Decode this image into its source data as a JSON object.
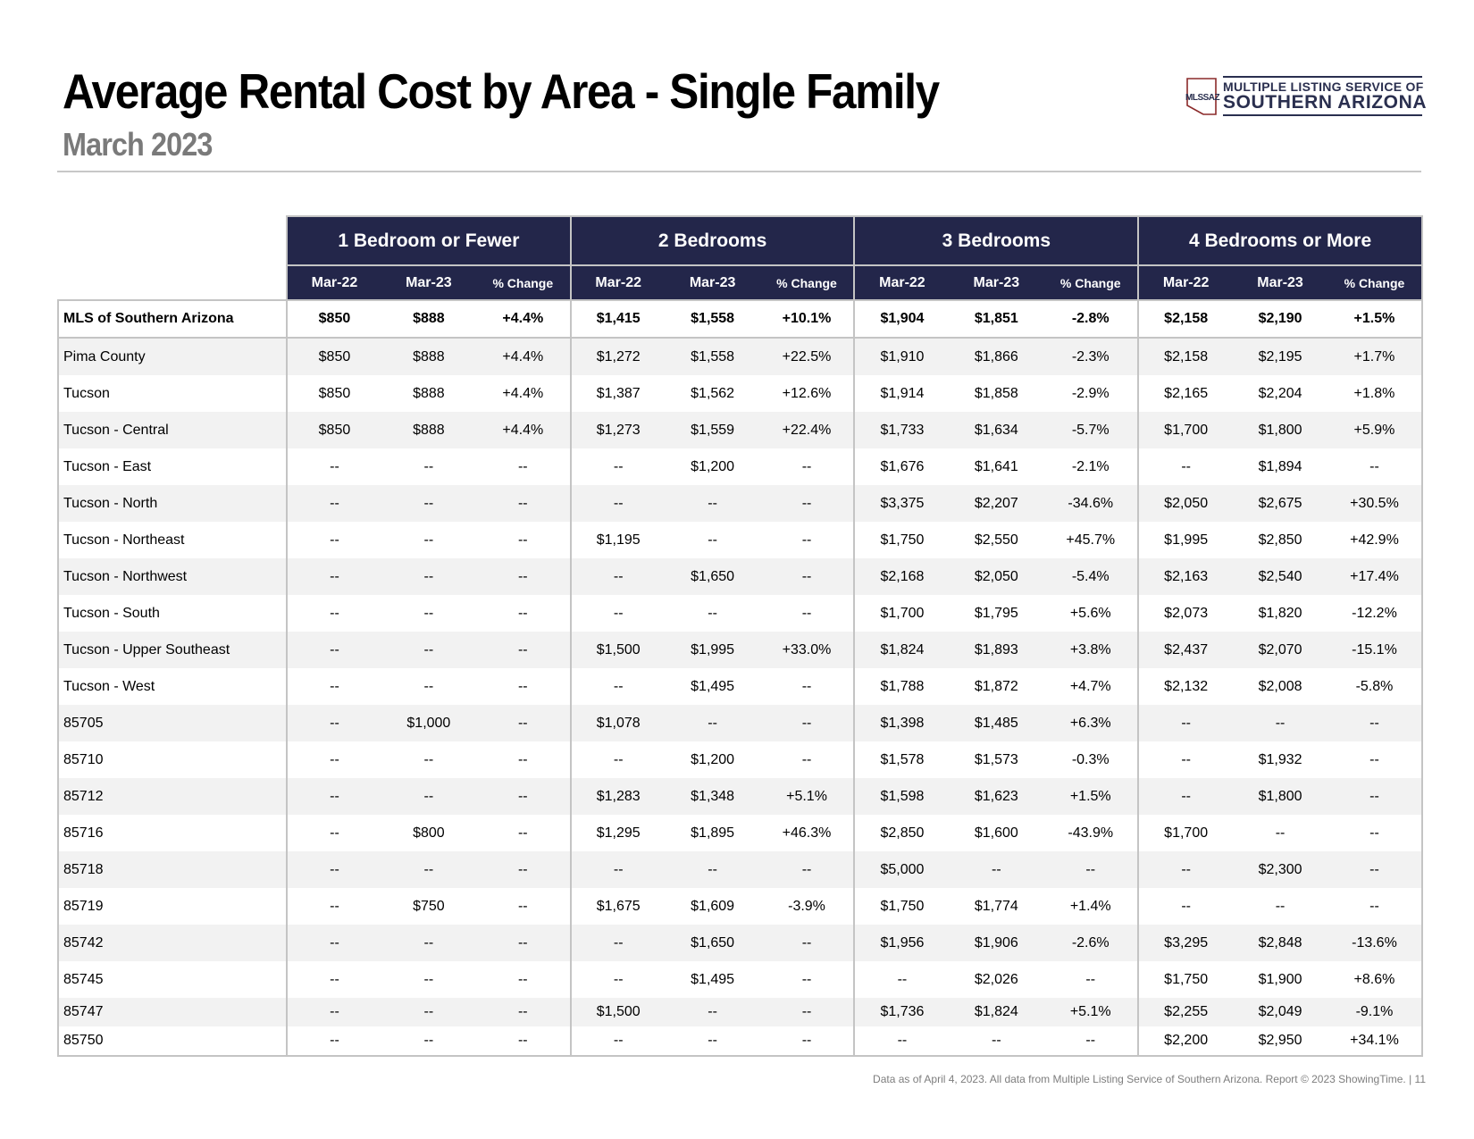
{
  "header": {
    "title": "Average Rental Cost by Area - Single Family",
    "subtitle": "March 2023"
  },
  "logo": {
    "mark_text": "MLSSAZ",
    "line1": "MULTIPLE LISTING SERVICE OF",
    "line2": "SOUTHERN ARIZONA"
  },
  "colors": {
    "header_bg": "#23264a",
    "accent": "#2a2f4f",
    "row_alt": "#f2f2f2"
  },
  "table": {
    "groups": [
      "1 Bedroom or Fewer",
      "2 Bedrooms",
      "3 Bedrooms",
      "4 Bedrooms or More"
    ],
    "subheaders": [
      "Mar-22",
      "Mar-23",
      "% Change"
    ],
    "rows": [
      {
        "area": "MLS of Southern Arizona",
        "values": [
          "$850",
          "$888",
          "+4.4%",
          "$1,415",
          "$1,558",
          "+10.1%",
          "$1,904",
          "$1,851",
          "-2.8%",
          "$2,158",
          "$2,190",
          "+1.5%"
        ]
      },
      {
        "area": "Pima County",
        "values": [
          "$850",
          "$888",
          "+4.4%",
          "$1,272",
          "$1,558",
          "+22.5%",
          "$1,910",
          "$1,866",
          "-2.3%",
          "$2,158",
          "$2,195",
          "+1.7%"
        ]
      },
      {
        "area": "Tucson",
        "values": [
          "$850",
          "$888",
          "+4.4%",
          "$1,387",
          "$1,562",
          "+12.6%",
          "$1,914",
          "$1,858",
          "-2.9%",
          "$2,165",
          "$2,204",
          "+1.8%"
        ]
      },
      {
        "area": "Tucson - Central",
        "values": [
          "$850",
          "$888",
          "+4.4%",
          "$1,273",
          "$1,559",
          "+22.4%",
          "$1,733",
          "$1,634",
          "-5.7%",
          "$1,700",
          "$1,800",
          "+5.9%"
        ]
      },
      {
        "area": "Tucson - East",
        "values": [
          "--",
          "--",
          "--",
          "--",
          "$1,200",
          "--",
          "$1,676",
          "$1,641",
          "-2.1%",
          "--",
          "$1,894",
          "--"
        ]
      },
      {
        "area": "Tucson - North",
        "values": [
          "--",
          "--",
          "--",
          "--",
          "--",
          "--",
          "$3,375",
          "$2,207",
          "-34.6%",
          "$2,050",
          "$2,675",
          "+30.5%"
        ]
      },
      {
        "area": "Tucson - Northeast",
        "values": [
          "--",
          "--",
          "--",
          "$1,195",
          "--",
          "--",
          "$1,750",
          "$2,550",
          "+45.7%",
          "$1,995",
          "$2,850",
          "+42.9%"
        ]
      },
      {
        "area": "Tucson - Northwest",
        "values": [
          "--",
          "--",
          "--",
          "--",
          "$1,650",
          "--",
          "$2,168",
          "$2,050",
          "-5.4%",
          "$2,163",
          "$2,540",
          "+17.4%"
        ]
      },
      {
        "area": "Tucson - South",
        "values": [
          "--",
          "--",
          "--",
          "--",
          "--",
          "--",
          "$1,700",
          "$1,795",
          "+5.6%",
          "$2,073",
          "$1,820",
          "-12.2%"
        ]
      },
      {
        "area": "Tucson - Upper Southeast",
        "values": [
          "--",
          "--",
          "--",
          "$1,500",
          "$1,995",
          "+33.0%",
          "$1,824",
          "$1,893",
          "+3.8%",
          "$2,437",
          "$2,070",
          "-15.1%"
        ]
      },
      {
        "area": "Tucson - West",
        "values": [
          "--",
          "--",
          "--",
          "--",
          "$1,495",
          "--",
          "$1,788",
          "$1,872",
          "+4.7%",
          "$2,132",
          "$2,008",
          "-5.8%"
        ]
      },
      {
        "area": "85705",
        "values": [
          "--",
          "$1,000",
          "--",
          "$1,078",
          "--",
          "--",
          "$1,398",
          "$1,485",
          "+6.3%",
          "--",
          "--",
          "--"
        ]
      },
      {
        "area": "85710",
        "values": [
          "--",
          "--",
          "--",
          "--",
          "$1,200",
          "--",
          "$1,578",
          "$1,573",
          "-0.3%",
          "--",
          "$1,932",
          "--"
        ]
      },
      {
        "area": "85712",
        "values": [
          "--",
          "--",
          "--",
          "$1,283",
          "$1,348",
          "+5.1%",
          "$1,598",
          "$1,623",
          "+1.5%",
          "--",
          "$1,800",
          "--"
        ]
      },
      {
        "area": "85716",
        "values": [
          "--",
          "$800",
          "--",
          "$1,295",
          "$1,895",
          "+46.3%",
          "$2,850",
          "$1,600",
          "-43.9%",
          "$1,700",
          "--",
          "--"
        ]
      },
      {
        "area": "85718",
        "values": [
          "--",
          "--",
          "--",
          "--",
          "--",
          "--",
          "$5,000",
          "--",
          "--",
          "--",
          "$2,300",
          "--"
        ]
      },
      {
        "area": "85719",
        "values": [
          "--",
          "$750",
          "--",
          "$1,675",
          "$1,609",
          "-3.9%",
          "$1,750",
          "$1,774",
          "+1.4%",
          "--",
          "--",
          "--"
        ]
      },
      {
        "area": "85742",
        "values": [
          "--",
          "--",
          "--",
          "--",
          "$1,650",
          "--",
          "$1,956",
          "$1,906",
          "-2.6%",
          "$3,295",
          "$2,848",
          "-13.6%"
        ]
      },
      {
        "area": "85745",
        "values": [
          "--",
          "--",
          "--",
          "--",
          "$1,495",
          "--",
          "--",
          "$2,026",
          "--",
          "$1,750",
          "$1,900",
          "+8.6%"
        ]
      },
      {
        "area": "85747",
        "values": [
          "--",
          "--",
          "--",
          "$1,500",
          "--",
          "--",
          "$1,736",
          "$1,824",
          "+5.1%",
          "$2,255",
          "$2,049",
          "-9.1%"
        ]
      },
      {
        "area": "85750",
        "values": [
          "--",
          "--",
          "--",
          "--",
          "--",
          "--",
          "--",
          "--",
          "--",
          "$2,200",
          "$2,950",
          "+34.1%"
        ]
      }
    ]
  },
  "footer": {
    "note": "Data as of April 4, 2023. All data from Multiple Listing Service of Southern Arizona. Report © 2023 ShowingTime. | 11"
  }
}
